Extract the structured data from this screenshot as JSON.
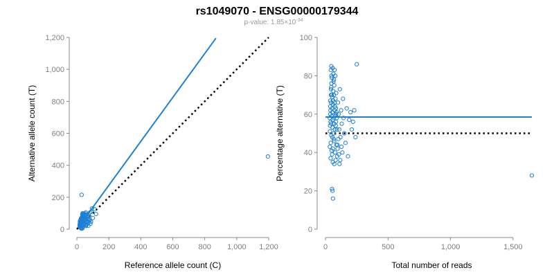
{
  "title": "rs1049070 - ENSG00000179344",
  "subtitle": {
    "prefix": "p-value: 1.85×10",
    "exponent": "-34"
  },
  "colors": {
    "points": "#1f7fd6",
    "fit": "#1f7fd6",
    "reference": "#000000",
    "axis": "#888888",
    "ticks": "#7f7f7f"
  },
  "chart_data": [
    {
      "type": "scatter",
      "xlabel": "Reference allele count (C)",
      "ylabel": "Alternative allele count (T)",
      "xlim": [
        0,
        1200
      ],
      "ylim": [
        0,
        1200
      ],
      "x_ticks": [
        0,
        200,
        400,
        600,
        800,
        1000,
        1200
      ],
      "x_tick_labels": [
        "0",
        "200",
        "400",
        "600",
        "800",
        "1,000",
        "1,200"
      ],
      "y_ticks": [
        0,
        200,
        400,
        600,
        800,
        1000,
        1200
      ],
      "y_tick_labels": [
        "0",
        "200",
        "400",
        "600",
        "800",
        "1,000",
        "1,200"
      ],
      "grid": false,
      "fit_line": {
        "x": [
          0,
          870
        ],
        "y": [
          0,
          1195
        ]
      },
      "reference_line": {
        "x": [
          0,
          1200
        ],
        "y": [
          0,
          1200
        ],
        "style": "dotted"
      },
      "points": [
        [
          20,
          35
        ],
        [
          22,
          45
        ],
        [
          25,
          60
        ],
        [
          18,
          30
        ],
        [
          30,
          50
        ],
        [
          28,
          70
        ],
        [
          24,
          40
        ],
        [
          26,
          55
        ],
        [
          21,
          25
        ],
        [
          19,
          48
        ],
        [
          32,
          62
        ],
        [
          27,
          38
        ],
        [
          23,
          52
        ],
        [
          29,
          44
        ],
        [
          31,
          58
        ],
        [
          22,
          33
        ],
        [
          20,
          41
        ],
        [
          25,
          66
        ],
        [
          17,
          22
        ],
        [
          26,
          47
        ],
        [
          30,
          72
        ],
        [
          35,
          80
        ],
        [
          33,
          65
        ],
        [
          28,
          36
        ],
        [
          24,
          28
        ],
        [
          21,
          54
        ],
        [
          19,
          37
        ],
        [
          36,
          75
        ],
        [
          38,
          90
        ],
        [
          40,
          85
        ],
        [
          42,
          60
        ],
        [
          34,
          49
        ],
        [
          27,
          43
        ],
        [
          23,
          31
        ],
        [
          29,
          57
        ],
        [
          31,
          68
        ],
        [
          25,
          46
        ],
        [
          22,
          39
        ],
        [
          18,
          26
        ],
        [
          20,
          34
        ],
        [
          45,
          95
        ],
        [
          50,
          100
        ],
        [
          55,
          70
        ],
        [
          60,
          40
        ],
        [
          65,
          50
        ],
        [
          70,
          65
        ],
        [
          48,
          55
        ],
        [
          52,
          30
        ],
        [
          58,
          25
        ],
        [
          75,
          45
        ],
        [
          80,
          60
        ],
        [
          85,
          35
        ],
        [
          90,
          110
        ],
        [
          95,
          130
        ],
        [
          62,
          82
        ],
        [
          68,
          78
        ],
        [
          44,
          72
        ],
        [
          41,
          18
        ],
        [
          37,
          15
        ],
        [
          33,
          10
        ],
        [
          30,
          20
        ],
        [
          26,
          12
        ],
        [
          24,
          8
        ],
        [
          22,
          16
        ],
        [
          28,
          4
        ],
        [
          35,
          5
        ],
        [
          40,
          28
        ],
        [
          46,
          36
        ],
        [
          53,
          42
        ],
        [
          57,
          20
        ],
        [
          63,
          30
        ],
        [
          72,
          22
        ],
        [
          78,
          55
        ],
        [
          88,
          48
        ],
        [
          100,
          70
        ],
        [
          110,
          125
        ],
        [
          120,
          95
        ],
        [
          56,
          105
        ],
        [
          47,
          88
        ],
        [
          39,
          98
        ],
        [
          34,
          92
        ],
        [
          30,
          215
        ],
        [
          36,
          100
        ],
        [
          43,
          76
        ],
        [
          49,
          67
        ],
        [
          54,
          58
        ],
        [
          61,
          92
        ],
        [
          66,
          74
        ],
        [
          74,
          83
        ],
        [
          82,
          105
        ],
        [
          1195,
          455
        ]
      ]
    },
    {
      "type": "scatter",
      "xlabel": "Total number of reads",
      "ylabel": "Percentage alternative (T)",
      "xlim": [
        0,
        1700
      ],
      "ylim": [
        0,
        100
      ],
      "x_ticks": [
        0,
        500,
        1000,
        1500
      ],
      "x_tick_labels": [
        "0",
        "500",
        "1,000",
        "1,500"
      ],
      "y_ticks": [
        0,
        20,
        40,
        60,
        80,
        100
      ],
      "y_tick_labels": [
        "0",
        "20",
        "40",
        "60",
        "80",
        "100"
      ],
      "grid": false,
      "fit_line": {
        "x": [
          0,
          1650
        ],
        "y": [
          58.5,
          58.5
        ]
      },
      "reference_line": {
        "x": [
          0,
          1650
        ],
        "y": [
          50,
          50
        ],
        "style": "dotted"
      },
      "points": [
        [
          40,
          62
        ],
        [
          45,
          55
        ],
        [
          50,
          70
        ],
        [
          55,
          48
        ],
        [
          60,
          65
        ],
        [
          65,
          58
        ],
        [
          70,
          75
        ],
        [
          75,
          52
        ],
        [
          80,
          68
        ],
        [
          85,
          60
        ],
        [
          42,
          45
        ],
        [
          48,
          80
        ],
        [
          52,
          63
        ],
        [
          58,
          57
        ],
        [
          62,
          72
        ],
        [
          68,
          50
        ],
        [
          72,
          66
        ],
        [
          78,
          59
        ],
        [
          82,
          54
        ],
        [
          88,
          61
        ],
        [
          35,
          43
        ],
        [
          38,
          67
        ],
        [
          44,
          73
        ],
        [
          46,
          49
        ],
        [
          54,
          69
        ],
        [
          56,
          53
        ],
        [
          64,
          77
        ],
        [
          66,
          47
        ],
        [
          74,
          62
        ],
        [
          76,
          64
        ],
        [
          84,
          56
        ],
        [
          86,
          71
        ],
        [
          90,
          58
        ],
        [
          95,
          44
        ],
        [
          100,
          66
        ],
        [
          105,
          60
        ],
        [
          110,
          52
        ],
        [
          115,
          73
        ],
        [
          120,
          48
        ],
        [
          125,
          62
        ],
        [
          130,
          55
        ],
        [
          135,
          40
        ],
        [
          140,
          68
        ],
        [
          145,
          58
        ],
        [
          150,
          50
        ],
        [
          160,
          45
        ],
        [
          170,
          63
        ],
        [
          180,
          38
        ],
        [
          190,
          57
        ],
        [
          200,
          61
        ],
        [
          210,
          52
        ],
        [
          220,
          56
        ],
        [
          240,
          48
        ],
        [
          250,
          86
        ],
        [
          230,
          62
        ],
        [
          43,
          83
        ],
        [
          47,
          85
        ],
        [
          51,
          79
        ],
        [
          57,
          84
        ],
        [
          63,
          81
        ],
        [
          67,
          78
        ],
        [
          73,
          83
        ],
        [
          79,
          80
        ],
        [
          41,
          37
        ],
        [
          49,
          41
        ],
        [
          53,
          39
        ],
        [
          59,
          35
        ],
        [
          61,
          42
        ],
        [
          69,
          46
        ],
        [
          71,
          34
        ],
        [
          77,
          40
        ],
        [
          81,
          36
        ],
        [
          87,
          44
        ],
        [
          93,
          38
        ],
        [
          97,
          42
        ],
        [
          103,
          47
        ],
        [
          107,
          39
        ],
        [
          112,
          34
        ],
        [
          118,
          36
        ],
        [
          128,
          43
        ],
        [
          52,
          21
        ],
        [
          56,
          20
        ],
        [
          60,
          16
        ],
        [
          46,
          74
        ],
        [
          48,
          76
        ],
        [
          44,
          70
        ],
        [
          39,
          60
        ],
        [
          37,
          54
        ],
        [
          36,
          51
        ],
        [
          34,
          58
        ],
        [
          39,
          64
        ],
        [
          41,
          56
        ],
        [
          45,
          66
        ],
        [
          50,
          59
        ],
        [
          55,
          61
        ],
        [
          61,
          67
        ],
        [
          66,
          70
        ],
        [
          70,
          55
        ],
        [
          83,
          63
        ],
        [
          92,
          52
        ],
        [
          1650,
          28
        ]
      ]
    }
  ]
}
